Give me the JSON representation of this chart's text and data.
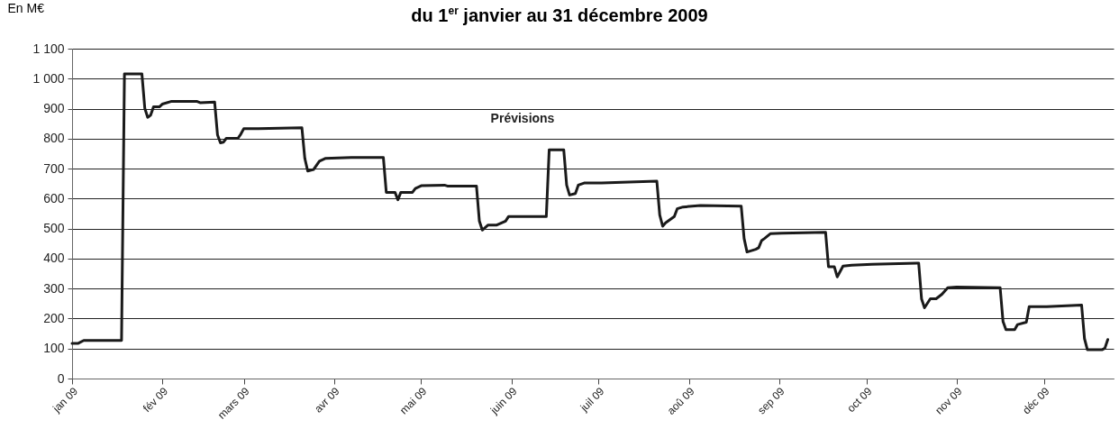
{
  "chart_data": {
    "type": "line",
    "title": "du 1$^{er}$ janvier au 31 décembre 2009",
    "ylabel": "En M€",
    "annotations": [
      "Prévisions"
    ],
    "x": [
      "2009-01-01",
      "2009-01-03",
      "2009-01-05",
      "2009-01-18",
      "2009-01-19",
      "2009-01-25",
      "2009-01-26",
      "2009-01-27",
      "2009-01-28",
      "2009-01-29",
      "2009-01-31",
      "2009-02-01",
      "2009-02-04",
      "2009-02-13",
      "2009-02-14",
      "2009-02-19",
      "2009-02-20",
      "2009-02-21",
      "2009-02-22",
      "2009-02-23",
      "2009-02-27",
      "2009-02-28",
      "2009-03-01",
      "2009-03-06",
      "2009-03-21",
      "2009-03-22",
      "2009-03-23",
      "2009-03-25",
      "2009-03-27",
      "2009-03-29",
      "2009-04-07",
      "2009-04-18",
      "2009-04-19",
      "2009-04-22",
      "2009-04-23",
      "2009-04-24",
      "2009-04-28",
      "2009-04-29",
      "2009-05-01",
      "2009-05-09",
      "2009-05-10",
      "2009-05-20",
      "2009-05-21",
      "2009-05-22",
      "2009-05-24",
      "2009-05-27",
      "2009-05-30",
      "2009-05-31",
      "2009-06-13",
      "2009-06-14",
      "2009-06-19",
      "2009-06-20",
      "2009-06-21",
      "2009-06-23",
      "2009-06-24",
      "2009-06-26",
      "2009-07-02",
      "2009-07-21",
      "2009-07-22",
      "2009-07-23",
      "2009-07-24",
      "2009-07-27",
      "2009-07-28",
      "2009-07-30",
      "2009-08-05",
      "2009-08-19",
      "2009-08-20",
      "2009-08-21",
      "2009-08-24",
      "2009-08-25",
      "2009-08-26",
      "2009-08-27",
      "2009-08-29",
      "2009-09-02",
      "2009-09-17",
      "2009-09-18",
      "2009-09-20",
      "2009-09-21",
      "2009-09-23",
      "2009-09-26",
      "2009-10-03",
      "2009-10-19",
      "2009-10-20",
      "2009-10-21",
      "2009-10-23",
      "2009-10-25",
      "2009-10-27",
      "2009-10-29",
      "2009-11-01",
      "2009-11-16",
      "2009-11-17",
      "2009-11-18",
      "2009-11-21",
      "2009-11-22",
      "2009-11-25",
      "2009-11-26",
      "2009-12-02",
      "2009-12-14",
      "2009-12-15",
      "2009-12-16",
      "2009-12-21",
      "2009-12-22",
      "2009-12-23"
    ],
    "series": [
      {
        "color": "#1a1a1a",
        "values": [
          117,
          117,
          127,
          127,
          1016,
          1016,
          901,
          871,
          878,
          906,
          906,
          915,
          924,
          924,
          920,
          922,
          812,
          786,
          788,
          801,
          801,
          815,
          833,
          833,
          836,
          734,
          692,
          697,
          725,
          734,
          737,
          737,
          621,
          621,
          596,
          621,
          621,
          634,
          643,
          645,
          642,
          642,
          525,
          495,
          512,
          512,
          525,
          540,
          540,
          763,
          763,
          645,
          612,
          617,
          645,
          652,
          652,
          658,
          545,
          508,
          519,
          540,
          566,
          572,
          577,
          575,
          467,
          422,
          431,
          436,
          460,
          467,
          483,
          485,
          488,
          373,
          373,
          339,
          375,
          378,
          381,
          385,
          265,
          236,
          266,
          266,
          281,
          303,
          305,
          303,
          190,
          163,
          163,
          180,
          188,
          240,
          240,
          245,
          133,
          96,
          96,
          101,
          130
        ]
      }
    ],
    "xlim": [
      "2009-01-01",
      "2009-12-25"
    ],
    "xticks": [
      {
        "value": "2009-01-01",
        "label": "jan 09"
      },
      {
        "value": "2009-02-01",
        "label": "fév 09"
      },
      {
        "value": "2009-03-01",
        "label": "mars 09"
      },
      {
        "value": "2009-04-01",
        "label": "avr 09"
      },
      {
        "value": "2009-05-01",
        "label": "mai 09"
      },
      {
        "value": "2009-06-01",
        "label": "juin 09"
      },
      {
        "value": "2009-07-01",
        "label": "juil 09"
      },
      {
        "value": "2009-08-01",
        "label": "aoû 09"
      },
      {
        "value": "2009-09-01",
        "label": "sep 09"
      },
      {
        "value": "2009-10-01",
        "label": "oct 09"
      },
      {
        "value": "2009-11-01",
        "label": "nov 09"
      },
      {
        "value": "2009-12-01",
        "label": "déc 09"
      }
    ],
    "ylim": [
      0,
      1100
    ],
    "yticks": [
      0,
      100,
      200,
      300,
      400,
      500,
      600,
      700,
      800,
      900,
      {
        "value": 1000,
        "label": "1 000"
      },
      {
        "value": 1100,
        "label": "1 100"
      }
    ],
    "grid": "y",
    "legend": false,
    "marker": "none",
    "line_style": "solid"
  }
}
